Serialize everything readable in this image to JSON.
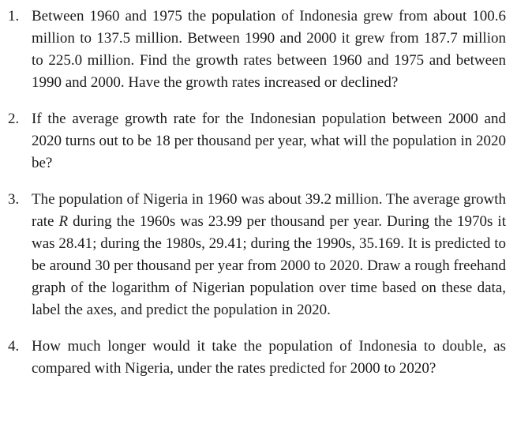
{
  "page": {
    "background": "#ffffff",
    "text_color": "#1b1b1b"
  },
  "problems": [
    {
      "number": "1.",
      "text": "Between 1960 and 1975 the population of Indonesia grew from about 100.6 million to 137.5 million. Between 1990 and 2000 it grew from 187.7 million to 225.0 million. Find the growth rates between 1960 and 1975 and between 1990 and 2000. Have the growth rates increased or declined?"
    },
    {
      "number": "2.",
      "text": "If the average growth rate for the Indonesian population between 2000 and 2020 turns out to be 18 per thousand per year, what will the population in 2020 be?"
    },
    {
      "number": "3.",
      "text_before_r": "The population of Nigeria in 1960 was about 39.2 million. The average growth rate ",
      "r_symbol": "R",
      "text_after_r": " during the 1960s was 23.99 per thousand per year. During the 1970s it was 28.41; during the 1980s, 29.41; during the 1990s, 35.169. It is predicted to be around 30 per thousand per year from 2000 to 2020. Draw a rough freehand graph of the logarithm of Nigerian population over time based on these data, label the axes, and predict the population in 2020."
    },
    {
      "number": "4.",
      "text": "How much longer would it take the population of Indonesia to double, as compared with Nigeria, under the rates predicted for 2000 to 2020?"
    }
  ]
}
